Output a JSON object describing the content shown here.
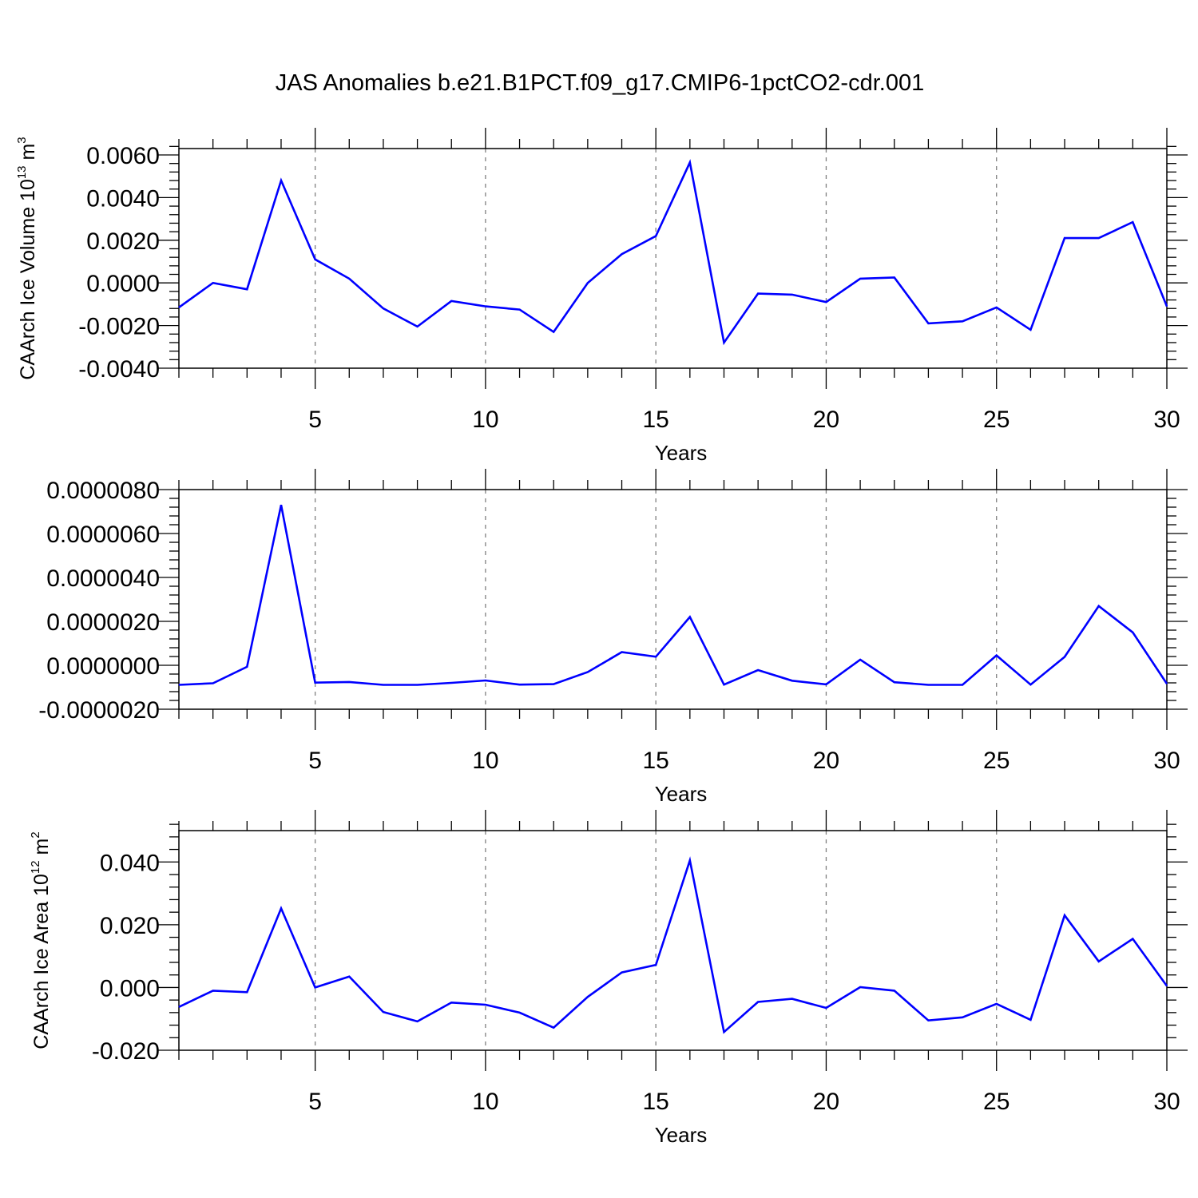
{
  "title": "JAS Anomalies b.e21.B1PCT.f09_g17.CMIP6-1pctCO2-cdr.001",
  "colors": {
    "line": "#0000ff",
    "axis": "#000000",
    "grid": "#808080"
  },
  "chart_data": [
    {
      "type": "line",
      "title": "",
      "xlabel": "Years",
      "ylabel": {
        "text": "CAArch Ice Volume 10",
        "sup1": "13",
        "mid": " m",
        "sup2": "3"
      },
      "xlim": [
        1,
        30
      ],
      "ylim": [
        -0.004,
        0.0063
      ],
      "yticks": [
        -0.004,
        -0.002,
        0.0,
        0.002,
        0.004,
        0.006
      ],
      "ytick_labels": [
        "-0.0040",
        "-0.0020",
        "0.0000",
        "0.0020",
        "0.0040",
        "0.0060"
      ],
      "xticks": [
        5,
        10,
        15,
        20,
        25,
        30
      ],
      "xtick_labels": [
        "5",
        "10",
        "15",
        "20",
        "25",
        "30"
      ],
      "grid": "x dashed",
      "x": [
        1,
        2,
        3,
        4,
        5,
        6,
        7,
        8,
        9,
        10,
        11,
        12,
        13,
        14,
        15,
        16,
        17,
        18,
        19,
        20,
        21,
        22,
        23,
        24,
        25,
        26,
        27,
        28,
        29,
        30
      ],
      "series": [
        {
          "values": [
            -0.00115,
            0.0,
            -0.0003,
            0.0048,
            0.0011,
            0.0002,
            -0.0012,
            -0.00205,
            -0.00085,
            -0.0011,
            -0.00125,
            -0.0023,
            0.0,
            0.00135,
            0.0022,
            0.00565,
            -0.0028,
            -0.0005,
            -0.00055,
            -0.0009,
            0.0002,
            0.00025,
            -0.0019,
            -0.0018,
            -0.00115,
            -0.0022,
            0.0021,
            0.0021,
            0.00285,
            -0.0011
          ]
        }
      ]
    },
    {
      "type": "line",
      "title": "",
      "xlabel": "Years",
      "ylabel": null,
      "xlim": [
        1,
        30
      ],
      "ylim": [
        -2e-06,
        8e-06
      ],
      "yticks": [
        -2e-06,
        0.0,
        2e-06,
        4e-06,
        6e-06,
        8e-06
      ],
      "ytick_labels": [
        "-0.0000020",
        "0.0000000",
        "0.0000020",
        "0.0000040",
        "0.0000060",
        "0.0000080"
      ],
      "xticks": [
        5,
        10,
        15,
        20,
        25,
        30
      ],
      "xtick_labels": [
        "5",
        "10",
        "15",
        "20",
        "25",
        "30"
      ],
      "grid": "x dashed",
      "x": [
        1,
        2,
        3,
        4,
        5,
        6,
        7,
        8,
        9,
        10,
        11,
        12,
        13,
        14,
        15,
        16,
        17,
        18,
        19,
        20,
        21,
        22,
        23,
        24,
        25,
        26,
        27,
        28,
        29,
        30
      ],
      "series": [
        {
          "values": [
            -8.9e-07,
            -8.2e-07,
            -7e-08,
            7.3e-06,
            -7.9e-07,
            -7.6e-07,
            -8.9e-07,
            -8.9e-07,
            -8e-07,
            -6.9e-07,
            -8.8e-07,
            -8.6e-07,
            -3.1e-07,
            6e-07,
            3.9e-07,
            2.2e-06,
            -8.8e-07,
            -2.2e-07,
            -7e-07,
            -8.7e-07,
            2.6e-07,
            -7.7e-07,
            -8.9e-07,
            -8.9e-07,
            4.5e-07,
            -8.8e-07,
            3.8e-07,
            2.7e-06,
            1.5e-06,
            -8.4e-07
          ]
        }
      ]
    },
    {
      "type": "line",
      "title": "",
      "xlabel": "Years",
      "ylabel": {
        "text": "CAArch Ice Area 10",
        "sup1": "12",
        "mid": " m",
        "sup2": "2"
      },
      "xlim": [
        1,
        30
      ],
      "ylim": [
        -0.02,
        0.05
      ],
      "yticks": [
        -0.02,
        0.0,
        0.02,
        0.04
      ],
      "ytick_labels": [
        "-0.020",
        "0.000",
        "0.020",
        "0.040"
      ],
      "xticks": [
        5,
        10,
        15,
        20,
        25,
        30
      ],
      "xtick_labels": [
        "5",
        "10",
        "15",
        "20",
        "25",
        "30"
      ],
      "grid": "x dashed",
      "x": [
        1,
        2,
        3,
        4,
        5,
        6,
        7,
        8,
        9,
        10,
        11,
        12,
        13,
        14,
        15,
        16,
        17,
        18,
        19,
        20,
        21,
        22,
        23,
        24,
        25,
        26,
        27,
        28,
        29,
        30
      ],
      "series": [
        {
          "values": [
            -0.0062,
            -0.001,
            -0.0015,
            0.0252,
            0.0,
            0.0035,
            -0.0078,
            -0.0108,
            -0.0048,
            -0.0055,
            -0.008,
            -0.0128,
            -0.003,
            0.0048,
            0.0072,
            0.0405,
            -0.0142,
            -0.0046,
            -0.0036,
            -0.0065,
            0.0001,
            -0.001,
            -0.0105,
            -0.0095,
            -0.0052,
            -0.0103,
            0.023,
            0.0083,
            0.0155,
            0.0005
          ]
        }
      ]
    }
  ]
}
